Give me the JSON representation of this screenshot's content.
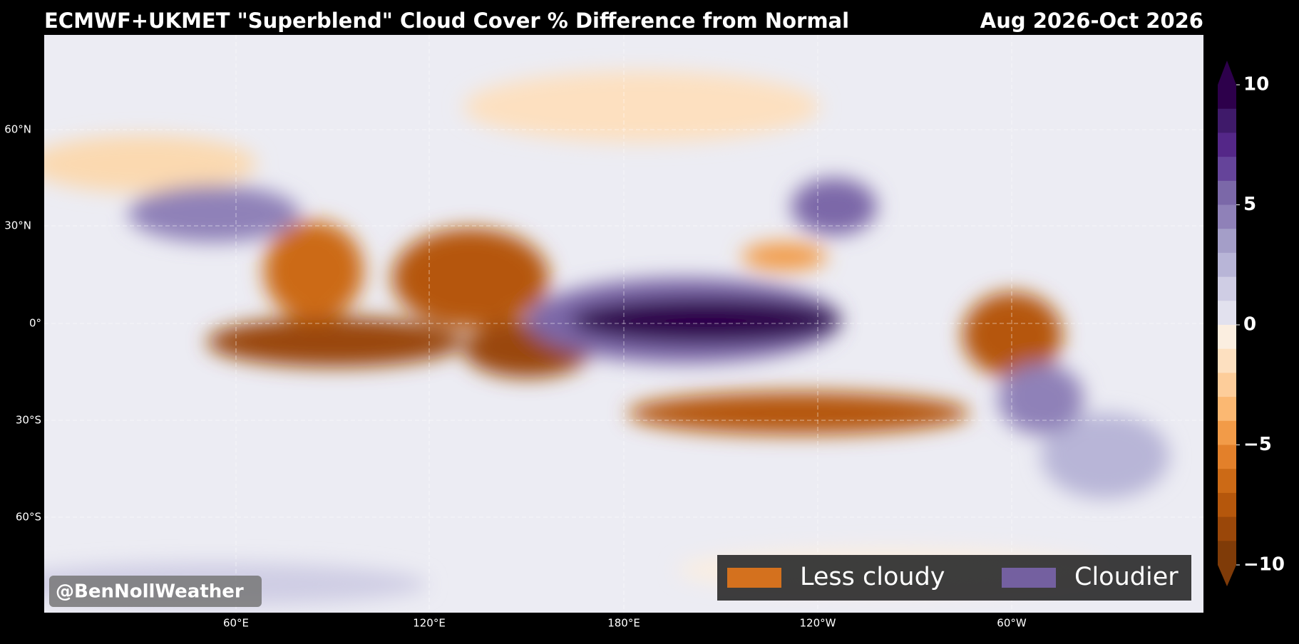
{
  "header": {
    "title": "ECMWF+UKMET \"Superblend\" Cloud Cover % Difference from Normal",
    "period": "Aug 2026-Oct 2026"
  },
  "map": {
    "lat_labels": [
      "60°N",
      "30°N",
      "0°",
      "30°S",
      "60°S"
    ],
    "lon_labels": [
      "60°E",
      "120°E",
      "180°E",
      "120°W",
      "60°W"
    ]
  },
  "colorbar": {
    "lim": [
      -10,
      10
    ],
    "ticks": [
      10,
      5,
      0,
      {
        "value": -5,
        "label": "−5"
      },
      {
        "value": -10,
        "label": "−10"
      }
    ],
    "colors": [
      "#2d004b",
      "#3f1a6a",
      "#542788",
      "#65449a",
      "#7b68a8",
      "#8f81b8",
      "#a49ec8",
      "#b8b5d7",
      "#cfcde4",
      "#e2e1ee",
      "#fbeee0",
      "#fde0c0",
      "#fdcd9a",
      "#fbb872",
      "#f29b48",
      "#e3802a",
      "#cc6a16",
      "#b5570c",
      "#9a4709",
      "#7f3b08"
    ]
  },
  "legend": [
    {
      "label": "Less cloudy",
      "color": "#d4711e"
    },
    {
      "label": "Cloudier",
      "color": "#7460a0"
    }
  ],
  "watermark": "@BenNollWeather"
}
